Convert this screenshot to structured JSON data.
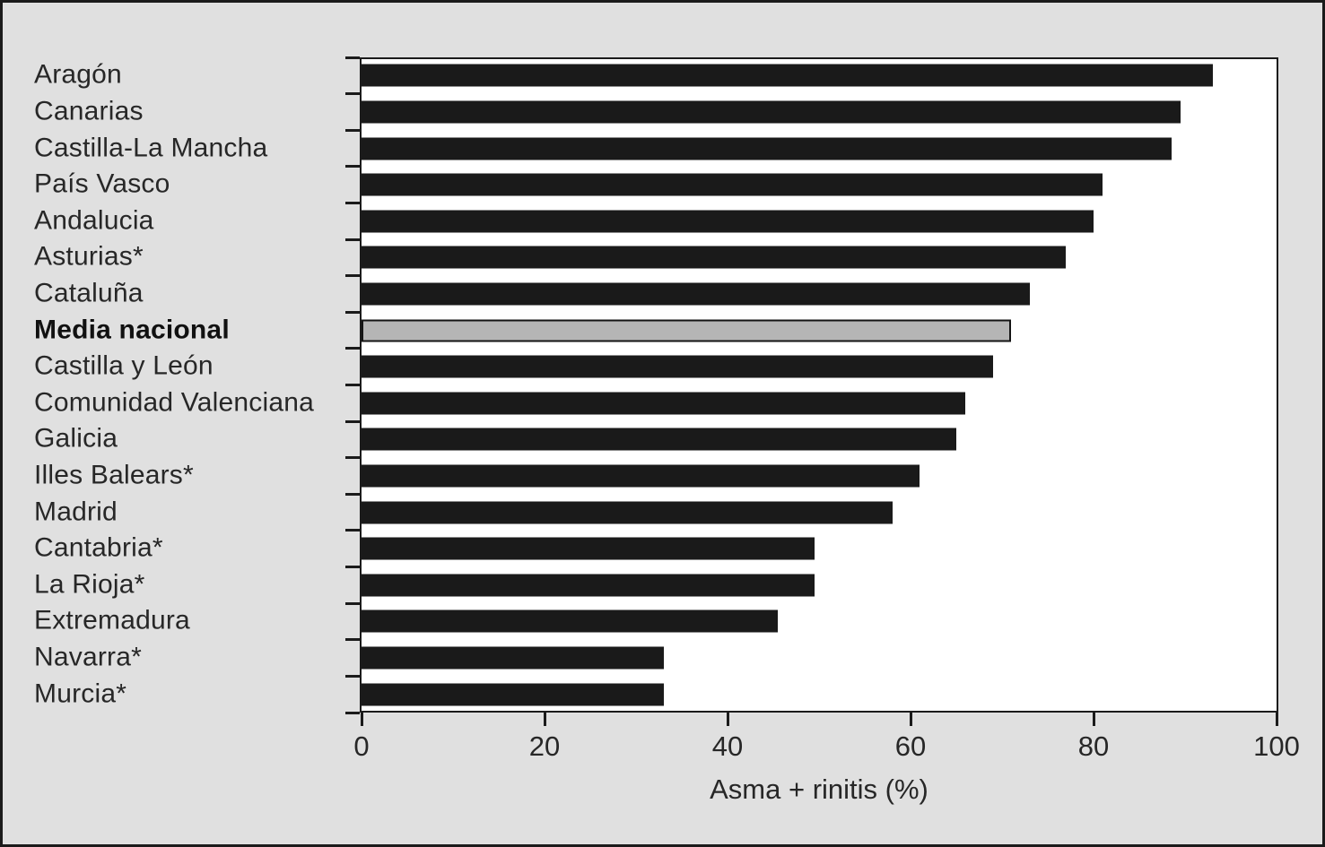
{
  "figure": {
    "background": "#e0e0e0",
    "plot_background": "#ffffff",
    "frame_color": "#1b1b1b",
    "text_color": "#272727"
  },
  "chart_data": {
    "type": "bar",
    "orientation": "horizontal",
    "title": "",
    "xlabel": "Asma + rinitis (%)",
    "ylabel": "",
    "xlim": [
      0,
      100
    ],
    "xticks": [
      0,
      20,
      40,
      60,
      80,
      100
    ],
    "grid": false,
    "legend": false,
    "bar_color": "#1a1a1a",
    "categories": [
      "Aragón",
      "Canarias",
      "Castilla-La Mancha",
      "País Vasco",
      "Andalucia",
      "Asturias*",
      "Cataluña",
      "Media nacional",
      "Castilla y León",
      "Comunidad Valenciana",
      "Galicia",
      "Illes Balears*",
      "Madrid",
      "Cantabria*",
      "La Rioja*",
      "Extremadura",
      "Navarra*",
      "Murcia*"
    ],
    "values": [
      93,
      89.5,
      88.5,
      81,
      80,
      77,
      73,
      71,
      69,
      66,
      65,
      61,
      58,
      49.5,
      49.5,
      45.5,
      33,
      33
    ],
    "highlight": {
      "label": "Media nacional",
      "index": 7,
      "color": "#b5b5b5"
    }
  }
}
